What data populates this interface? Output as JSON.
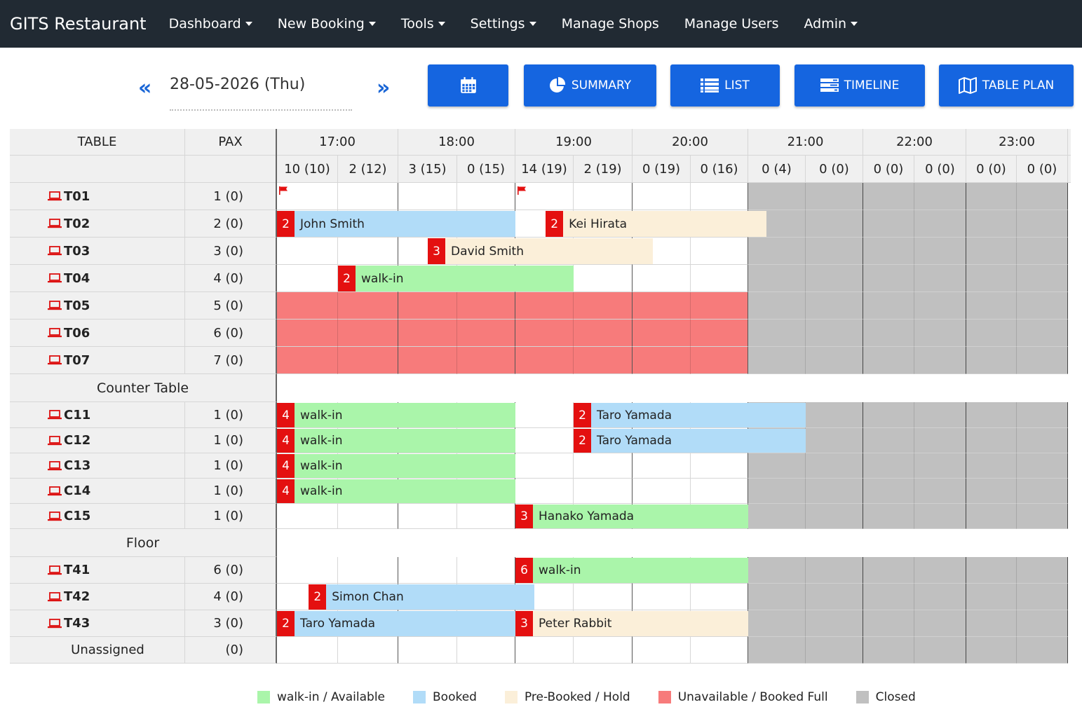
{
  "nav": {
    "brand": "GITS Restaurant",
    "items": [
      {
        "label": "Dashboard",
        "dropdown": true
      },
      {
        "label": "New Booking",
        "dropdown": true
      },
      {
        "label": "Tools",
        "dropdown": true
      },
      {
        "label": "Settings",
        "dropdown": true
      },
      {
        "label": "Manage Shops",
        "dropdown": false
      },
      {
        "label": "Manage Users",
        "dropdown": false
      },
      {
        "label": "Admin",
        "dropdown": true
      }
    ]
  },
  "toolbar": {
    "prev_icon": "«",
    "next_icon": "»",
    "date": "28-05-2026 (Thu)",
    "buttons": [
      {
        "name": "calendar",
        "label": "",
        "icon": "calendar-icon"
      },
      {
        "name": "summary",
        "label": "SUMMARY",
        "icon": "pie-chart-icon"
      },
      {
        "name": "list",
        "label": "LIST",
        "icon": "list-icon"
      },
      {
        "name": "timeline",
        "label": "TIMELINE",
        "icon": "timeline-icon"
      },
      {
        "name": "table-plan",
        "label": "TABLE PLAN",
        "icon": "map-icon"
      }
    ]
  },
  "grid": {
    "header": {
      "table": "TABLE",
      "pax": "PAX",
      "hours": [
        "17:00",
        "18:00",
        "19:00",
        "20:00",
        "21:00",
        "22:00",
        "23:00"
      ],
      "slot_counts": [
        "10 (10)",
        "2 (12)",
        "3 (15)",
        "0 (15)",
        "14 (19)",
        "2 (19)",
        "0 (19)",
        "0 (16)",
        "0 (4)",
        "0 (0)",
        "0 (0)",
        "0 (0)",
        "0 (0)",
        "0 (0)"
      ]
    },
    "rows": [
      {
        "type": "table",
        "name": "T01",
        "pax": "1 (0)",
        "status": "open",
        "flags": [
          0,
          4
        ],
        "bookings": []
      },
      {
        "type": "table",
        "name": "T02",
        "pax": "2 (0)",
        "status": "open",
        "bookings": [
          {
            "pax": "2",
            "name": "John Smith",
            "kind": "booked",
            "start": 0,
            "end": 4
          },
          {
            "pax": "2",
            "name": "Kei Hirata",
            "kind": "prebooked",
            "start": 4.52,
            "end": 8.32
          }
        ]
      },
      {
        "type": "table",
        "name": "T03",
        "pax": "3 (0)",
        "status": "open",
        "bookings": [
          {
            "pax": "3",
            "name": "David Smith",
            "kind": "prebooked",
            "start": 2.5,
            "end": 6.35
          }
        ]
      },
      {
        "type": "table",
        "name": "T04",
        "pax": "4 (0)",
        "status": "open",
        "bookings": [
          {
            "pax": "2",
            "name": "walk-in",
            "kind": "walkin",
            "start": 1,
            "end": 5
          }
        ]
      },
      {
        "type": "table",
        "name": "T05",
        "pax": "5 (0)",
        "status": "full",
        "bookings": []
      },
      {
        "type": "table",
        "name": "T06",
        "pax": "6 (0)",
        "status": "full",
        "bookings": []
      },
      {
        "type": "table",
        "name": "T07",
        "pax": "7 (0)",
        "status": "full",
        "bookings": []
      },
      {
        "type": "section",
        "name": "Counter Table"
      },
      {
        "type": "table",
        "name": "C11",
        "pax": "1 (0)",
        "status": "open",
        "bookings": [
          {
            "pax": "4",
            "name": "walk-in",
            "kind": "walkin",
            "start": 0,
            "end": 4
          },
          {
            "pax": "2",
            "name": "Taro Yamada",
            "kind": "booked",
            "start": 5,
            "end": 9
          }
        ]
      },
      {
        "type": "table",
        "name": "C12",
        "pax": "1 (0)",
        "status": "open",
        "bookings": [
          {
            "pax": "4",
            "name": "walk-in",
            "kind": "walkin",
            "start": 0,
            "end": 4
          },
          {
            "pax": "2",
            "name": "Taro Yamada",
            "kind": "booked",
            "start": 5,
            "end": 9
          }
        ]
      },
      {
        "type": "table",
        "name": "C13",
        "pax": "1 (0)",
        "status": "open",
        "bookings": [
          {
            "pax": "4",
            "name": "walk-in",
            "kind": "walkin",
            "start": 0,
            "end": 4
          }
        ]
      },
      {
        "type": "table",
        "name": "C14",
        "pax": "1 (0)",
        "status": "open",
        "bookings": [
          {
            "pax": "4",
            "name": "walk-in",
            "kind": "walkin",
            "start": 0,
            "end": 4
          }
        ]
      },
      {
        "type": "table",
        "name": "C15",
        "pax": "1 (0)",
        "status": "open",
        "bookings": [
          {
            "pax": "3",
            "name": "Hanako Yamada",
            "kind": "walkin",
            "start": 4,
            "end": 8
          }
        ]
      },
      {
        "type": "section",
        "name": "Floor"
      },
      {
        "type": "table",
        "name": "T41",
        "pax": "6 (0)",
        "status": "open",
        "bookings": [
          {
            "pax": "6",
            "name": "walk-in",
            "kind": "walkin",
            "start": 4,
            "end": 8
          }
        ]
      },
      {
        "type": "table",
        "name": "T42",
        "pax": "4 (0)",
        "status": "open",
        "bookings": [
          {
            "pax": "2",
            "name": "Simon Chan",
            "kind": "booked",
            "start": 0.52,
            "end": 4.32
          }
        ]
      },
      {
        "type": "table",
        "name": "T43",
        "pax": "3 (0)",
        "status": "open",
        "bookings": [
          {
            "pax": "2",
            "name": "Taro Yamada",
            "kind": "booked",
            "start": 0,
            "end": 4
          },
          {
            "pax": "3",
            "name": "Peter Rabbit",
            "kind": "prebooked",
            "start": 4,
            "end": 8
          }
        ]
      },
      {
        "type": "unassigned",
        "name": "Unassigned",
        "pax": "(0)",
        "status": "open",
        "bookings": []
      }
    ]
  },
  "legend": [
    {
      "label": "walk-in / Available",
      "color": "#aaf5aa"
    },
    {
      "label": "Booked",
      "color": "#b1dcf8"
    },
    {
      "label": "Pre-Booked / Hold",
      "color": "#fbefd9"
    },
    {
      "label": "Unavailable / Booked Full",
      "color": "#f77b7b"
    },
    {
      "label": "Closed",
      "color": "#c0c0c0"
    }
  ],
  "colors": {
    "navbar": "#212a33",
    "button": "#1565e0",
    "pax_badge": "#e41010",
    "icon_red": "#d11"
  }
}
